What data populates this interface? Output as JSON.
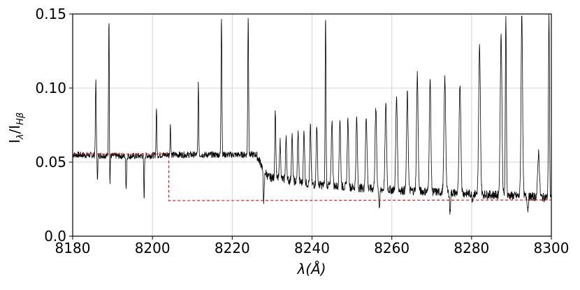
{
  "chart_data": {
    "type": "line",
    "xlabel": "λ(Å)",
    "ylabel": "I_λ/I_Hβ",
    "xlim": [
      8180,
      8300
    ],
    "ylim": [
      0.0,
      0.15
    ],
    "x_ticks": [
      8180,
      8200,
      8220,
      8240,
      8260,
      8280,
      8300
    ],
    "x_tick_labels": [
      "8180",
      "8200",
      "8220",
      "8240",
      "8260",
      "8280",
      "8300"
    ],
    "y_ticks": [
      0.0,
      0.05,
      0.1,
      0.15
    ],
    "y_tick_labels": [
      "0.0",
      "0.05",
      "0.10",
      "0.15"
    ],
    "grid": true,
    "colors": {
      "spectrum": "#000000",
      "continuum": "#e31a1c",
      "grid": "#d4d4d4"
    },
    "series": [
      {
        "style": "solid",
        "color": "#000000",
        "baseline": [
          [
            8180,
            0.055
          ],
          [
            8195,
            0.054
          ],
          [
            8204,
            0.055
          ],
          [
            8226,
            0.055
          ],
          [
            8229,
            0.04
          ],
          [
            8240,
            0.035
          ],
          [
            8255,
            0.032
          ],
          [
            8270,
            0.03
          ],
          [
            8285,
            0.028
          ],
          [
            8300,
            0.026
          ]
        ],
        "peaks": [
          [
            8185.8,
            0.105,
            0.25
          ],
          [
            8189.1,
            0.15,
            0.25
          ],
          [
            8201.0,
            0.087,
            0.22
          ],
          [
            8204.5,
            0.075,
            0.22
          ],
          [
            8211.5,
            0.103,
            0.22
          ],
          [
            8217.3,
            0.15,
            0.25
          ],
          [
            8224.0,
            0.15,
            0.25
          ],
          [
            8230.8,
            0.086,
            0.3
          ],
          [
            8232.0,
            0.064,
            0.35
          ],
          [
            8233.5,
            0.066,
            0.35
          ],
          [
            8235.0,
            0.068,
            0.35
          ],
          [
            8236.5,
            0.07,
            0.35
          ],
          [
            8238.0,
            0.072,
            0.35
          ],
          [
            8239.6,
            0.074,
            0.35
          ],
          [
            8241.2,
            0.076,
            0.35
          ],
          [
            8243.4,
            0.15,
            0.25
          ],
          [
            8245.0,
            0.078,
            0.4
          ],
          [
            8247.0,
            0.079,
            0.4
          ],
          [
            8249.0,
            0.079,
            0.4
          ],
          [
            8251.2,
            0.08,
            0.4
          ],
          [
            8253.6,
            0.081,
            0.45
          ],
          [
            8256.0,
            0.086,
            0.45
          ],
          [
            8258.5,
            0.089,
            0.45
          ],
          [
            8261.2,
            0.095,
            0.45
          ],
          [
            8263.9,
            0.096,
            0.45
          ],
          [
            8266.4,
            0.11,
            0.45
          ],
          [
            8269.6,
            0.106,
            0.45
          ],
          [
            8273.3,
            0.106,
            0.5
          ],
          [
            8277.1,
            0.103,
            0.5
          ],
          [
            8282.0,
            0.128,
            0.5
          ],
          [
            8287.4,
            0.136,
            0.5
          ],
          [
            8288.6,
            0.15,
            0.3
          ],
          [
            8292.6,
            0.15,
            0.45
          ],
          [
            8296.8,
            0.057,
            0.5
          ],
          [
            8299.4,
            0.15,
            0.3
          ]
        ],
        "dips": [
          [
            8186.2,
            0.039,
            0.2
          ],
          [
            8189.3,
            0.024,
            0.2
          ],
          [
            8193.4,
            0.033,
            0.25
          ],
          [
            8197.9,
            0.025,
            0.2
          ],
          [
            8227.9,
            0.024,
            0.35
          ],
          [
            8256.9,
            0.019,
            0.3
          ],
          [
            8274.6,
            0.015,
            0.25
          ],
          [
            8280.2,
            0.025,
            0.3
          ],
          [
            8294.1,
            0.018,
            0.3
          ]
        ]
      },
      {
        "style": "dashed",
        "color": "#e31a1c",
        "points": [
          [
            8180,
            0.0555
          ],
          [
            8204.1,
            0.0555
          ],
          [
            8204.1,
            0.024
          ],
          [
            8300,
            0.0245
          ]
        ]
      }
    ]
  }
}
